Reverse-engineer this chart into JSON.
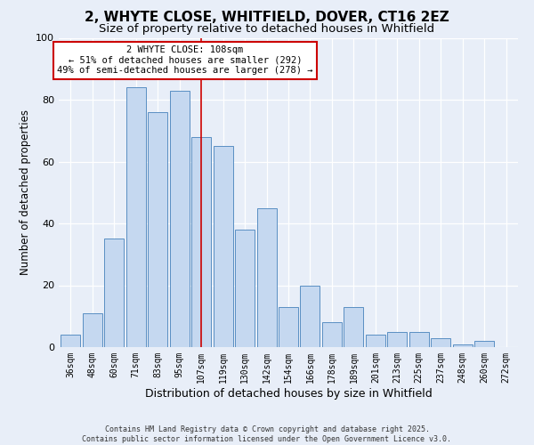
{
  "title": "2, WHYTE CLOSE, WHITFIELD, DOVER, CT16 2EZ",
  "subtitle": "Size of property relative to detached houses in Whitfield",
  "xlabel": "Distribution of detached houses by size in Whitfield",
  "ylabel": "Number of detached properties",
  "bar_labels": [
    "36sqm",
    "48sqm",
    "60sqm",
    "71sqm",
    "83sqm",
    "95sqm",
    "107sqm",
    "119sqm",
    "130sqm",
    "142sqm",
    "154sqm",
    "166sqm",
    "178sqm",
    "189sqm",
    "201sqm",
    "213sqm",
    "225sqm",
    "237sqm",
    "248sqm",
    "260sqm",
    "272sqm"
  ],
  "bar_values": [
    4,
    11,
    35,
    84,
    76,
    83,
    68,
    65,
    38,
    45,
    13,
    20,
    8,
    13,
    4,
    5,
    5,
    3,
    1,
    2,
    0
  ],
  "bar_color": "#c5d8f0",
  "bar_edge_color": "#5a8fc3",
  "reference_line_index": 6,
  "annotation_title": "2 WHYTE CLOSE: 108sqm",
  "annotation_line1": "← 51% of detached houses are smaller (292)",
  "annotation_line2": "49% of semi-detached houses are larger (278) →",
  "annotation_box_color": "#ffffff",
  "annotation_box_edge": "#cc0000",
  "reference_line_color": "#cc0000",
  "background_color": "#e8eef8",
  "footer_line1": "Contains HM Land Registry data © Crown copyright and database right 2025.",
  "footer_line2": "Contains public sector information licensed under the Open Government Licence v3.0.",
  "ylim": [
    0,
    100
  ],
  "title_fontsize": 11,
  "subtitle_fontsize": 9.5,
  "xlabel_fontsize": 9,
  "ylabel_fontsize": 8.5
}
